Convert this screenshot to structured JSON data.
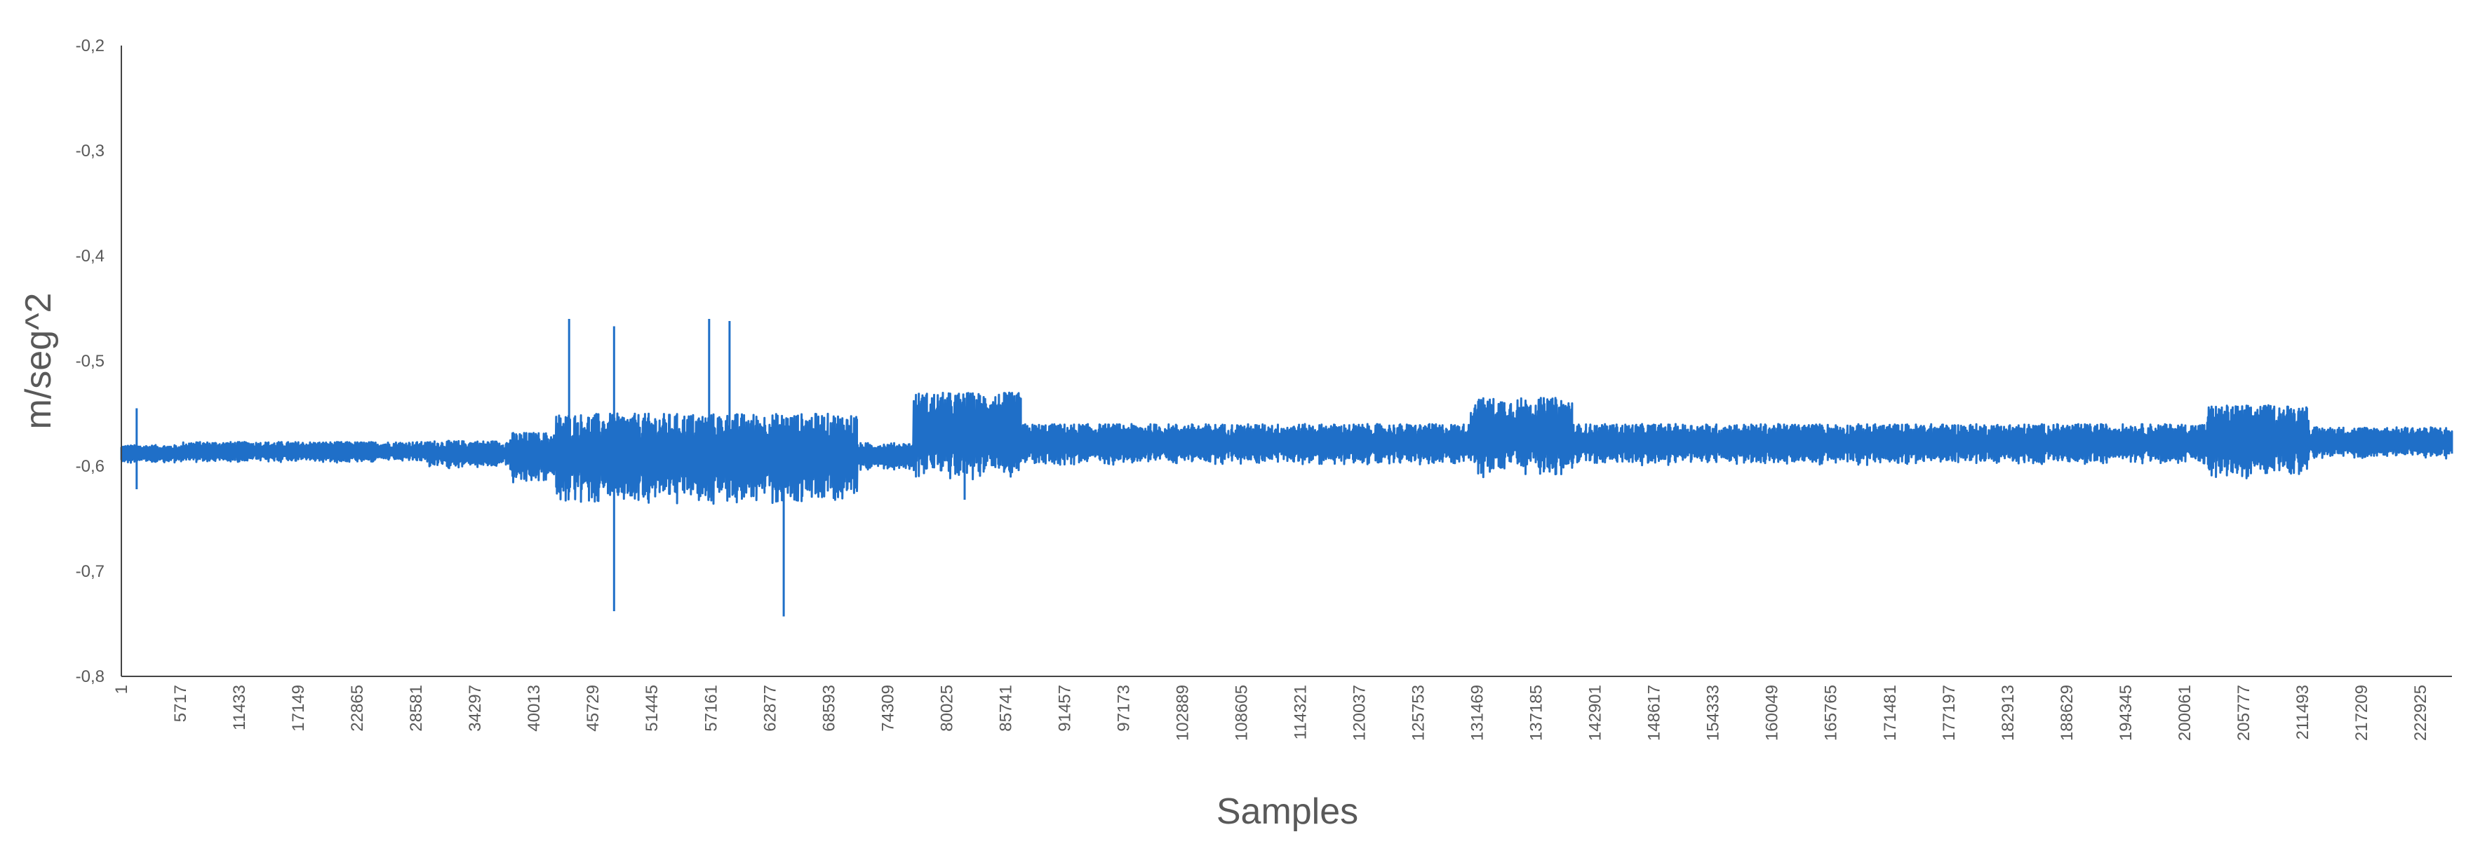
{
  "chart_data": {
    "type": "line",
    "title": "",
    "xlabel": "Samples",
    "ylabel": "m/seg^2",
    "ylim": [
      -0.8,
      -0.2
    ],
    "y_ticks": [
      -0.2,
      -0.3,
      -0.4,
      -0.5,
      -0.6,
      -0.7,
      -0.8
    ],
    "y_tick_labels": [
      "-0,2",
      "-0,3",
      "-0,4",
      "-0,5",
      "-0,6",
      "-0,7",
      "-0,8"
    ],
    "xlim": [
      1,
      228000
    ],
    "x_tick_labels": [
      "1",
      "5717",
      "11433",
      "17149",
      "22865",
      "28581",
      "34297",
      "40013",
      "45729",
      "51445",
      "57161",
      "62877",
      "68593",
      "74309",
      "80025",
      "85741",
      "91457",
      "97173",
      "102889",
      "108605",
      "114321",
      "120037",
      "125753",
      "131469",
      "137185",
      "142901",
      "148617",
      "154333",
      "160049",
      "165765",
      "171481",
      "177197",
      "182913",
      "188629",
      "194345",
      "200061",
      "205777",
      "211493",
      "217209",
      "222925"
    ],
    "grid": false,
    "legend": "none",
    "series": [
      {
        "color": "#1f6fc8",
        "segments": [
          {
            "x0": 1,
            "x1": 6000,
            "base": -0.588,
            "amp": 0.008
          },
          {
            "x0": 6000,
            "x1": 30000,
            "base": -0.586,
            "amp": 0.009
          },
          {
            "x0": 30000,
            "x1": 38000,
            "base": -0.588,
            "amp": 0.012
          },
          {
            "x0": 38000,
            "x1": 42500,
            "base": -0.59,
            "amp": 0.022
          },
          {
            "x0": 42500,
            "x1": 72000,
            "base": -0.59,
            "amp": 0.04
          },
          {
            "x0": 72000,
            "x1": 77500,
            "base": -0.59,
            "amp": 0.012
          },
          {
            "x0": 77500,
            "x1": 88000,
            "base": -0.568,
            "amp": 0.038
          },
          {
            "x0": 88000,
            "x1": 132000,
            "base": -0.578,
            "amp": 0.018
          },
          {
            "x0": 132000,
            "x1": 142000,
            "base": -0.57,
            "amp": 0.035
          },
          {
            "x0": 142000,
            "x1": 204000,
            "base": -0.578,
            "amp": 0.018
          },
          {
            "x0": 204000,
            "x1": 214000,
            "base": -0.574,
            "amp": 0.032
          },
          {
            "x0": 214000,
            "x1": 228000,
            "base": -0.577,
            "amp": 0.014
          }
        ],
        "spikes": [
          {
            "x": 1500,
            "y_max": -0.545,
            "y_min": -0.622
          },
          {
            "x": 43800,
            "y_max": -0.46,
            "y_min": -0.625
          },
          {
            "x": 48200,
            "y_max": -0.467,
            "y_min": -0.738
          },
          {
            "x": 57500,
            "y_max": -0.46,
            "y_min": -0.63
          },
          {
            "x": 59500,
            "y_max": -0.462,
            "y_min": -0.63
          },
          {
            "x": 64800,
            "y_max": -0.555,
            "y_min": -0.743
          },
          {
            "x": 82500,
            "y_max": -0.535,
            "y_min": -0.632
          }
        ]
      }
    ]
  }
}
